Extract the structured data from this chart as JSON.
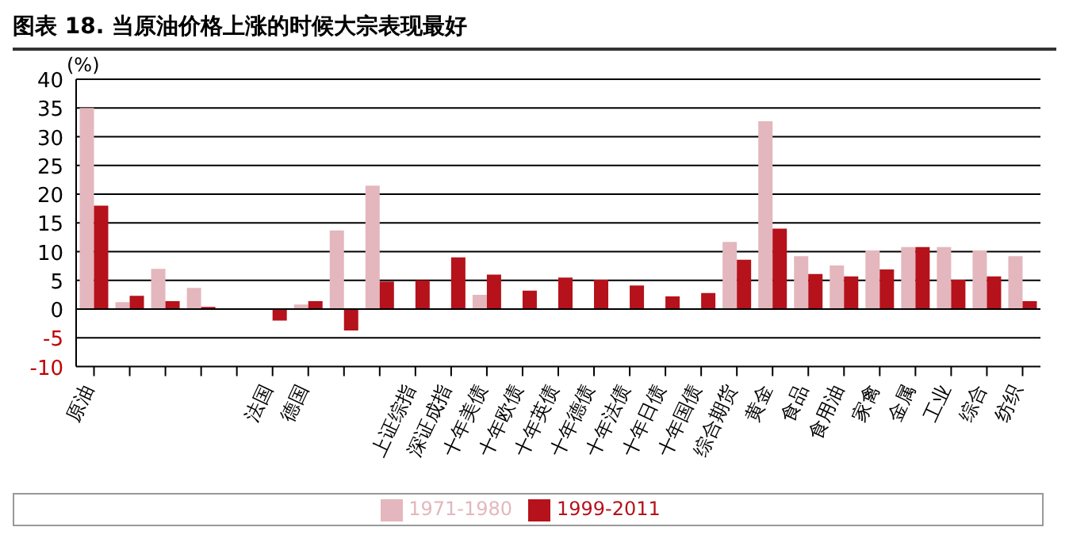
{
  "chart_data": {
    "type": "bar",
    "title": "图表 18. 当原油价格上涨的时候大宗表现最好",
    "ylabel": "(%)",
    "categories": [
      "原油",
      null,
      null,
      null,
      null,
      "法国",
      "德国",
      null,
      null,
      "上证综指",
      "深证成指",
      "十年美债",
      "十年欧债",
      "十年英债",
      "十年德债",
      "十年法债",
      "十年日债",
      "十年国债",
      "综合期货",
      "黄金",
      "食品",
      "食用油",
      "家禽",
      "金属",
      "工业",
      "综合",
      "纺织"
    ],
    "series": [
      {
        "name": "1971-1980",
        "color": "#e3b7bd",
        "values": [
          35,
          1.2,
          7,
          3.7,
          null,
          0,
          0.8,
          13.7,
          21.5,
          0,
          0,
          2.5,
          0,
          0,
          0,
          0,
          0,
          0,
          11.7,
          32.7,
          9.2,
          7.6,
          10.2,
          10.8,
          10.8,
          10.2,
          9.2
        ]
      },
      {
        "name": "1999-2011",
        "color": "#b5121b",
        "values": [
          18,
          2.3,
          1.4,
          0.4,
          0,
          -2,
          1.4,
          -3.7,
          4.8,
          5,
          9,
          6,
          3.2,
          5.5,
          5.1,
          4.1,
          2.2,
          2.8,
          8.6,
          14,
          6.1,
          5.7,
          6.9,
          10.8,
          5.1,
          5.7,
          1.4
        ]
      }
    ],
    "ylim": [
      -10,
      40
    ],
    "yticks": [
      -10,
      -5,
      0,
      5,
      10,
      15,
      20,
      25,
      30,
      35,
      40
    ],
    "grid": "y",
    "legend": "bottom"
  }
}
